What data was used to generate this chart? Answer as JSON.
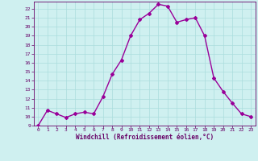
{
  "x": [
    0,
    1,
    2,
    3,
    4,
    5,
    6,
    7,
    8,
    9,
    10,
    11,
    12,
    13,
    14,
    15,
    16,
    17,
    18,
    19,
    20,
    21,
    22,
    23
  ],
  "y": [
    9,
    10.7,
    10.3,
    9.9,
    10.3,
    10.5,
    10.3,
    12.2,
    14.7,
    16.3,
    19.0,
    20.8,
    21.5,
    22.5,
    22.3,
    20.5,
    20.8,
    21.0,
    19.0,
    14.3,
    12.8,
    11.5,
    10.3,
    10.0
  ],
  "line_color": "#990099",
  "marker": "D",
  "marker_size": 2.0,
  "bg_color": "#cff0f0",
  "grid_color": "#aadddd",
  "xlabel": "Windchill (Refroidissement éolien,°C)",
  "xlabel_color": "#660066",
  "tick_color": "#660066",
  "ylim": [
    9,
    22.8
  ],
  "xlim": [
    -0.5,
    23.5
  ],
  "yticks": [
    9,
    10,
    11,
    12,
    13,
    14,
    15,
    16,
    17,
    18,
    19,
    20,
    21,
    22
  ],
  "xticks": [
    0,
    1,
    2,
    3,
    4,
    5,
    6,
    7,
    8,
    9,
    10,
    11,
    12,
    13,
    14,
    15,
    16,
    17,
    18,
    19,
    20,
    21,
    22,
    23
  ],
  "line_width": 1.0
}
